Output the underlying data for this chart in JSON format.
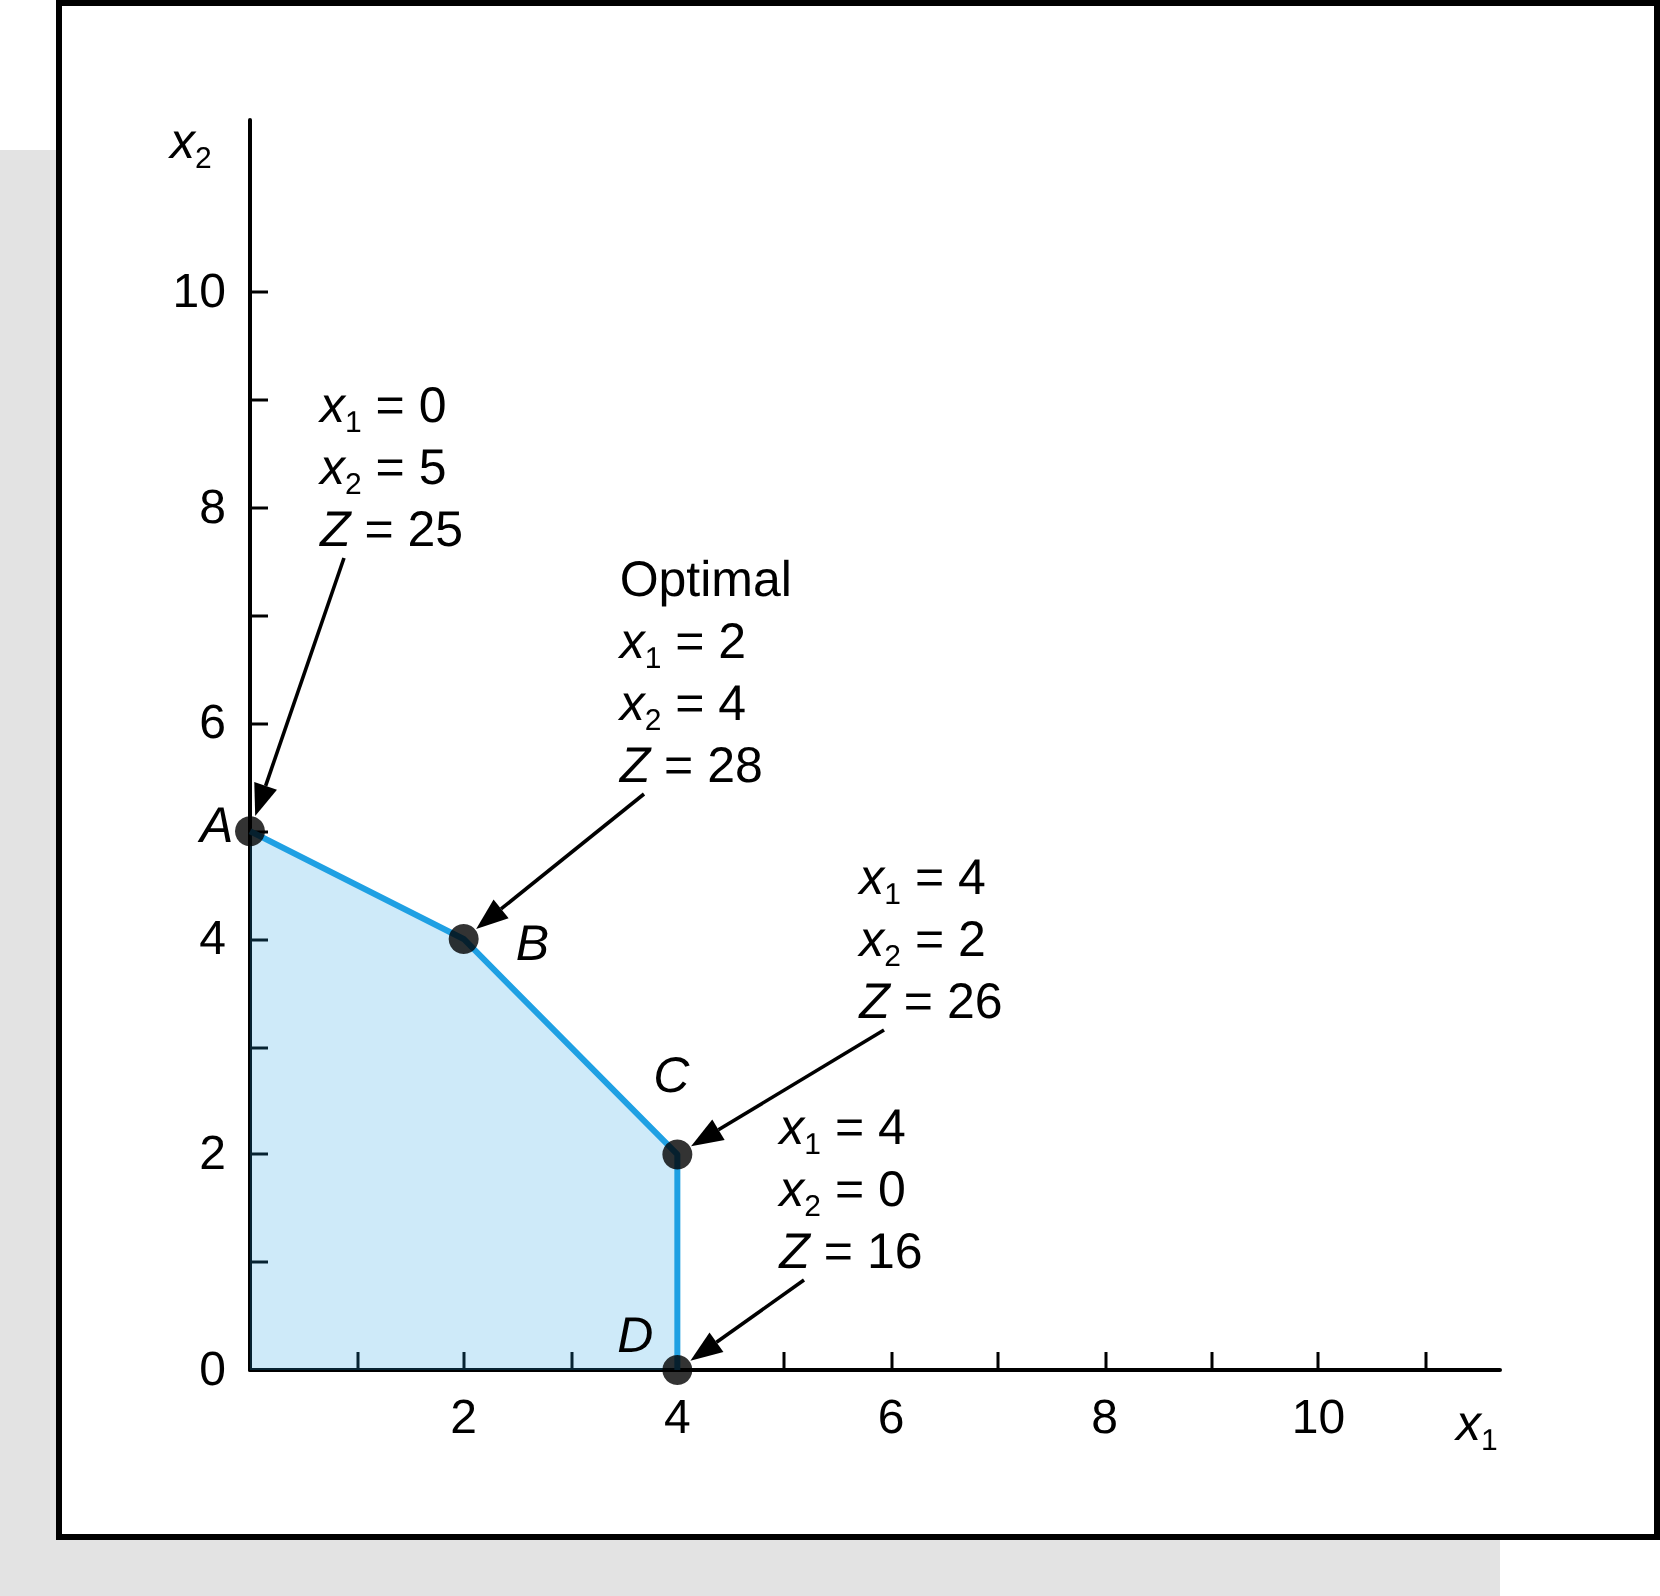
{
  "chart_data": {
    "type": "area",
    "xlabel": "x$_{1}$",
    "ylabel": "x$_{2}$",
    "xlim": [
      0,
      11.7
    ],
    "ylim": [
      0,
      11.6
    ],
    "xticks": [
      {
        "value": 1,
        "label": null
      },
      2,
      {
        "value": 3,
        "label": null
      },
      4,
      {
        "value": 5,
        "label": null
      },
      6,
      {
        "value": 7,
        "label": null
      },
      8,
      {
        "value": 9,
        "label": null
      },
      10,
      {
        "value": 11,
        "label": null
      }
    ],
    "yticks": [
      0,
      {
        "value": 1,
        "label": null
      },
      2,
      {
        "value": 3,
        "label": null
      },
      4,
      {
        "value": 5,
        "label": null
      },
      6,
      {
        "value": 7,
        "label": null
      },
      8,
      {
        "value": 9,
        "label": null
      },
      10
    ],
    "series": [
      {
        "color": "#1fa0e3",
        "marker": "none",
        "x": [
          0,
          2,
          4,
          4
        ],
        "values": [
          5,
          4,
          2,
          0
        ]
      },
      {
        "type": "scatter",
        "color": "#000000",
        "marker": "circle",
        "x": [
          0,
          2,
          4,
          4
        ],
        "values": [
          5,
          4,
          2,
          0
        ]
      }
    ],
    "annotations": [
      {
        "text": "A",
        "x": 0,
        "y": 5
      },
      {
        "text": "B",
        "x": 2,
        "y": 4
      },
      {
        "text": "C",
        "x": 4,
        "y": 2
      },
      {
        "text": "D",
        "x": 4,
        "y": 0
      },
      "x$_{1}$ = 0\nx$_{2}$ = 5\nZ = 25",
      "Optimal\nx$_{1}$ = 2\nx$_{2}$ = 4\nZ = 28",
      "x$_{1}$ = 4\nx$_{2}$ = 2\nZ = 26",
      "x$_{1}$ = 4\nx$_{2}$ = 0\nZ = 16"
    ],
    "grid": false
  }
}
